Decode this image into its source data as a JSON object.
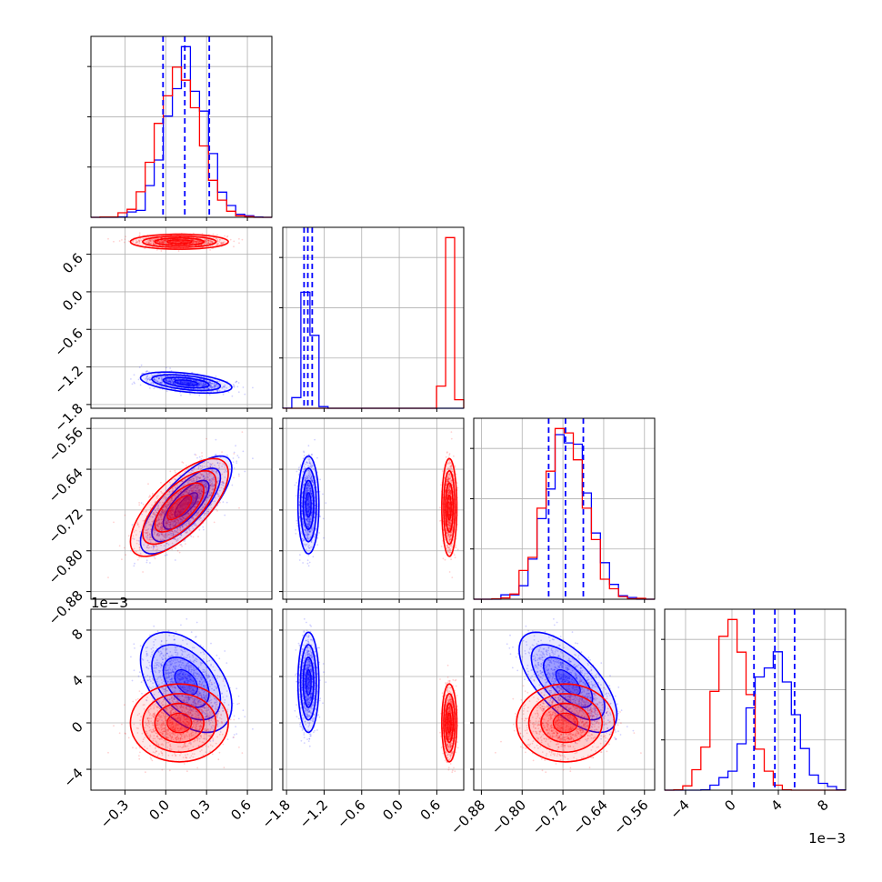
{
  "chart_data": {
    "type": "corner",
    "series": [
      {
        "name": "",
        "color": "#0000ff",
        "mean": [
          0.15,
          -1.45,
          -0.71,
          0.0035
        ],
        "sd": [
          0.14,
          0.07,
          0.04,
          0.0018
        ],
        "corr": [
          [
            1,
            -0.45,
            0.75,
            -0.45
          ],
          [
            -0.45,
            1,
            0,
            0
          ],
          [
            0.75,
            0,
            1,
            -0.65
          ],
          [
            -0.45,
            0,
            -0.65,
            1
          ]
        ]
      },
      {
        "name": "",
        "color": "#ff0000",
        "mean": [
          0.1,
          0.8,
          -0.715,
          0.0
        ],
        "sd": [
          0.15,
          0.05,
          0.04,
          0.0014
        ],
        "corr": [
          [
            1,
            0,
            0.7,
            0
          ],
          [
            0,
            1,
            0,
            0
          ],
          [
            0.7,
            0,
            1,
            0
          ],
          [
            0,
            0,
            0,
            1
          ]
        ]
      }
    ],
    "quantile_color": "#0000ff",
    "quantile_lines": [
      [
        -0.02,
        0.14,
        0.32
      ],
      [
        -1.52,
        -1.46,
        -1.39
      ],
      [
        -0.748,
        -0.715,
        -0.68
      ],
      [
        0.0019,
        0.0037,
        0.0054
      ]
    ],
    "ranges": [
      [
        -0.55,
        0.78
      ],
      [
        -1.86,
        1.03
      ],
      [
        -0.895,
        -0.54
      ],
      [
        -0.0058,
        0.0098
      ]
    ],
    "ticks": [
      [
        -0.3,
        0.0,
        0.3,
        0.6
      ],
      [
        -1.8,
        -1.2,
        -0.6,
        0.0,
        0.6
      ],
      [
        -0.88,
        -0.8,
        -0.72,
        -0.64,
        -0.56
      ],
      [
        -0.004,
        0.0,
        0.004,
        0.008
      ]
    ],
    "tick_labels": [
      [
        "−0.3",
        "0.0",
        "0.3",
        "0.6"
      ],
      [
        "−1.8",
        "−1.2",
        "−0.6",
        "0.0",
        "0.6"
      ],
      [
        "−0.88",
        "−0.80",
        "−0.72",
        "−0.64",
        "−0.56"
      ],
      [
        "−4",
        "0",
        "4",
        "8"
      ]
    ],
    "offset_text": "1e−3",
    "grid": true,
    "hist_bins": 20,
    "contour_levels": [
      "39%",
      "86%",
      "99%"
    ]
  }
}
